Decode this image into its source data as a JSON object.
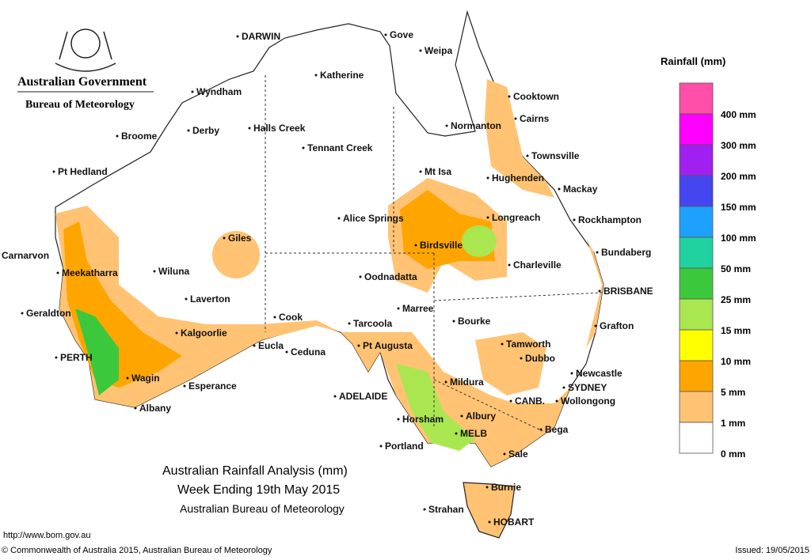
{
  "header": {
    "government": "Australian Government",
    "bureau": "Bureau of Meteorology"
  },
  "title": {
    "line1": "Australian Rainfall Analysis (mm)",
    "line2": "Week Ending 19th May 2015",
    "line3": "Australian Bureau of Meteorology"
  },
  "legend": {
    "title": "Rainfall (mm)",
    "items": [
      {
        "label": "400 mm",
        "color": "#ff4fa8"
      },
      {
        "label": "300 mm",
        "color": "#ff00ff"
      },
      {
        "label": "200 mm",
        "color": "#a020f0"
      },
      {
        "label": "150 mm",
        "color": "#4646f0"
      },
      {
        "label": "100 mm",
        "color": "#1ea0ff"
      },
      {
        "label": "50 mm",
        "color": "#20d2a0"
      },
      {
        "label": "25 mm",
        "color": "#3cc83c"
      },
      {
        "label": "15 mm",
        "color": "#aae650"
      },
      {
        "label": "10 mm",
        "color": "#ffff00"
      },
      {
        "label": "5 mm",
        "color": "#ffa500"
      },
      {
        "label": "1 mm",
        "color": "#ffc373"
      },
      {
        "label": "0 mm",
        "color": "#ffffff"
      }
    ]
  },
  "places": [
    "DARWIN",
    "Gove",
    "Weipa",
    "Katherine",
    "Wyndham",
    "Cooktown",
    "Cairns",
    "Normanton",
    "Halls Creek",
    "Derby",
    "Broome",
    "Tennant Creek",
    "Townsville",
    "Pt Hedland",
    "Mt Isa",
    "Hughenden",
    "Mackay",
    "Alice Springs",
    "Longreach",
    "Rockhampton",
    "Giles",
    "Birdsville",
    "Carnarvon",
    "Bundaberg",
    "Charleville",
    "Meekatharra",
    "Wiluna",
    "Oodnadatta",
    "BRISBANE",
    "Laverton",
    "Marree",
    "Geraldton",
    "Cook",
    "Bourke",
    "Tarcoola",
    "Grafton",
    "Kalgoorlie",
    "Eucla",
    "Pt Augusta",
    "Tamworth",
    "Ceduna",
    "PERTH",
    "Dubbo",
    "Newcastle",
    "Wagin",
    "Mildura",
    "SYDNEY",
    "Esperance",
    "ADELAIDE",
    "CANB.",
    "Wollongong",
    "Albany",
    "Albury",
    "Horsham",
    "Bega",
    "MELB",
    "Portland",
    "Sale",
    "Burnie",
    "Strahan",
    "HOBART"
  ],
  "footer": {
    "url": "http://www.bom.gov.au",
    "copyright": "© Commonwealth of Australia 2015, Australian Bureau of Meteorology",
    "issued": "Issued: 19/05/2015"
  }
}
